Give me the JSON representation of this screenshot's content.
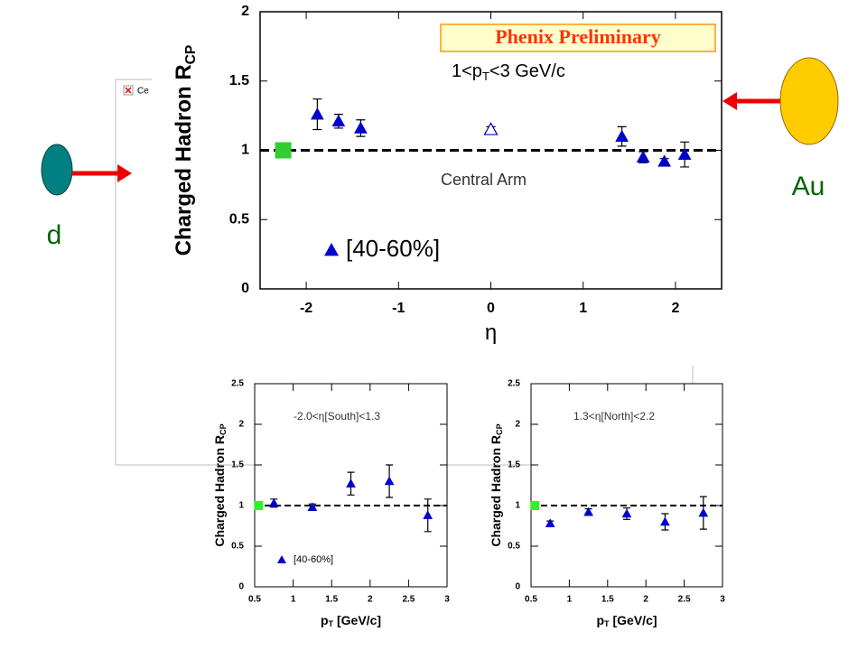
{
  "chart_data": [
    {
      "type": "scatter",
      "title": "Phenix Preliminary",
      "x_label": "η",
      "y_label": {
        "text": "Charged Hadron R",
        "sub": "CP"
      },
      "xlim": [
        -2.5,
        2.5
      ],
      "ylim": [
        0,
        2
      ],
      "xticks": [
        -2,
        -1,
        0,
        1,
        2
      ],
      "yticks": [
        0,
        0.5,
        1,
        1.5,
        2
      ],
      "reference_line": 1,
      "reference_point": {
        "x": -2.25,
        "y": 1,
        "color": "#33cc33"
      },
      "annotations": [
        {
          "text": "1<p",
          "sub": "T",
          "rest": "<3 GeV/c"
        },
        {
          "text": "Central Arm"
        }
      ],
      "legend": "lower left",
      "series": [
        {
          "name": "[40-60%]",
          "color": "#0000cc",
          "marker": "triangle",
          "x": [
            -1.88,
            -1.65,
            -1.41,
            1.42,
            1.65,
            1.88,
            2.1
          ],
          "values": [
            1.26,
            1.21,
            1.16,
            1.1,
            0.95,
            0.92,
            0.97
          ],
          "errors": [
            0.11,
            0.05,
            0.06,
            0.07,
            0.04,
            0.02,
            0.09
          ]
        },
        {
          "color": "#0000cc",
          "marker": "open-triangle",
          "x": [
            0
          ],
          "values": [
            1.15
          ],
          "errors": [
            0.02
          ]
        }
      ]
    },
    {
      "type": "scatter",
      "x_label": {
        "text": "p",
        "sub": "T",
        "rest": " [GeV/c]"
      },
      "y_label": {
        "text": "Charged Hadron R",
        "sub": "CP"
      },
      "xlim": [
        0.5,
        3
      ],
      "ylim": [
        0,
        2.5
      ],
      "xticks": [
        0.5,
        1,
        1.5,
        2,
        2.5,
        3
      ],
      "yticks": [
        0,
        0.5,
        1,
        1.5,
        2,
        2.5
      ],
      "reference_line": 1,
      "reference_point": {
        "x": 0.55,
        "y": 1,
        "color": "#33ee33"
      },
      "annotations": [
        {
          "text": "-2.0<η[South]<1.3"
        }
      ],
      "legend": "lower left",
      "series": [
        {
          "name": "[40-60%]",
          "color": "#0000cc",
          "marker": "triangle",
          "x": [
            0.75,
            1.25,
            1.75,
            2.25,
            2.75
          ],
          "values": [
            1.03,
            0.98,
            1.27,
            1.3,
            0.88
          ],
          "errors": [
            0.05,
            0.04,
            0.14,
            0.2,
            0.2
          ]
        }
      ]
    },
    {
      "type": "scatter",
      "x_label": {
        "text": "p",
        "sub": "T",
        "rest": " [GeV/c]"
      },
      "y_label": {
        "text": "Charged Hadron R",
        "sub": "CP"
      },
      "xlim": [
        0.5,
        3
      ],
      "ylim": [
        0,
        2.5
      ],
      "xticks": [
        0.5,
        1,
        1.5,
        2,
        2.5,
        3
      ],
      "yticks": [
        0,
        0.5,
        1,
        1.5,
        2,
        2.5
      ],
      "reference_line": 1,
      "reference_point": {
        "x": 0.55,
        "y": 1,
        "color": "#33ee33"
      },
      "annotations": [
        {
          "text": "1.3<η[North]<2.2"
        }
      ],
      "series": [
        {
          "color": "#0000cc",
          "marker": "triangle",
          "x": [
            0.75,
            1.25,
            1.75,
            2.25,
            2.75
          ],
          "values": [
            0.78,
            0.92,
            0.9,
            0.8,
            0.91
          ],
          "errors": [
            0.03,
            0.04,
            0.07,
            0.1,
            0.2
          ]
        }
      ]
    }
  ],
  "slide": {
    "left_label": "d",
    "right_label": "Au",
    "broken_image_text": "Ce"
  }
}
